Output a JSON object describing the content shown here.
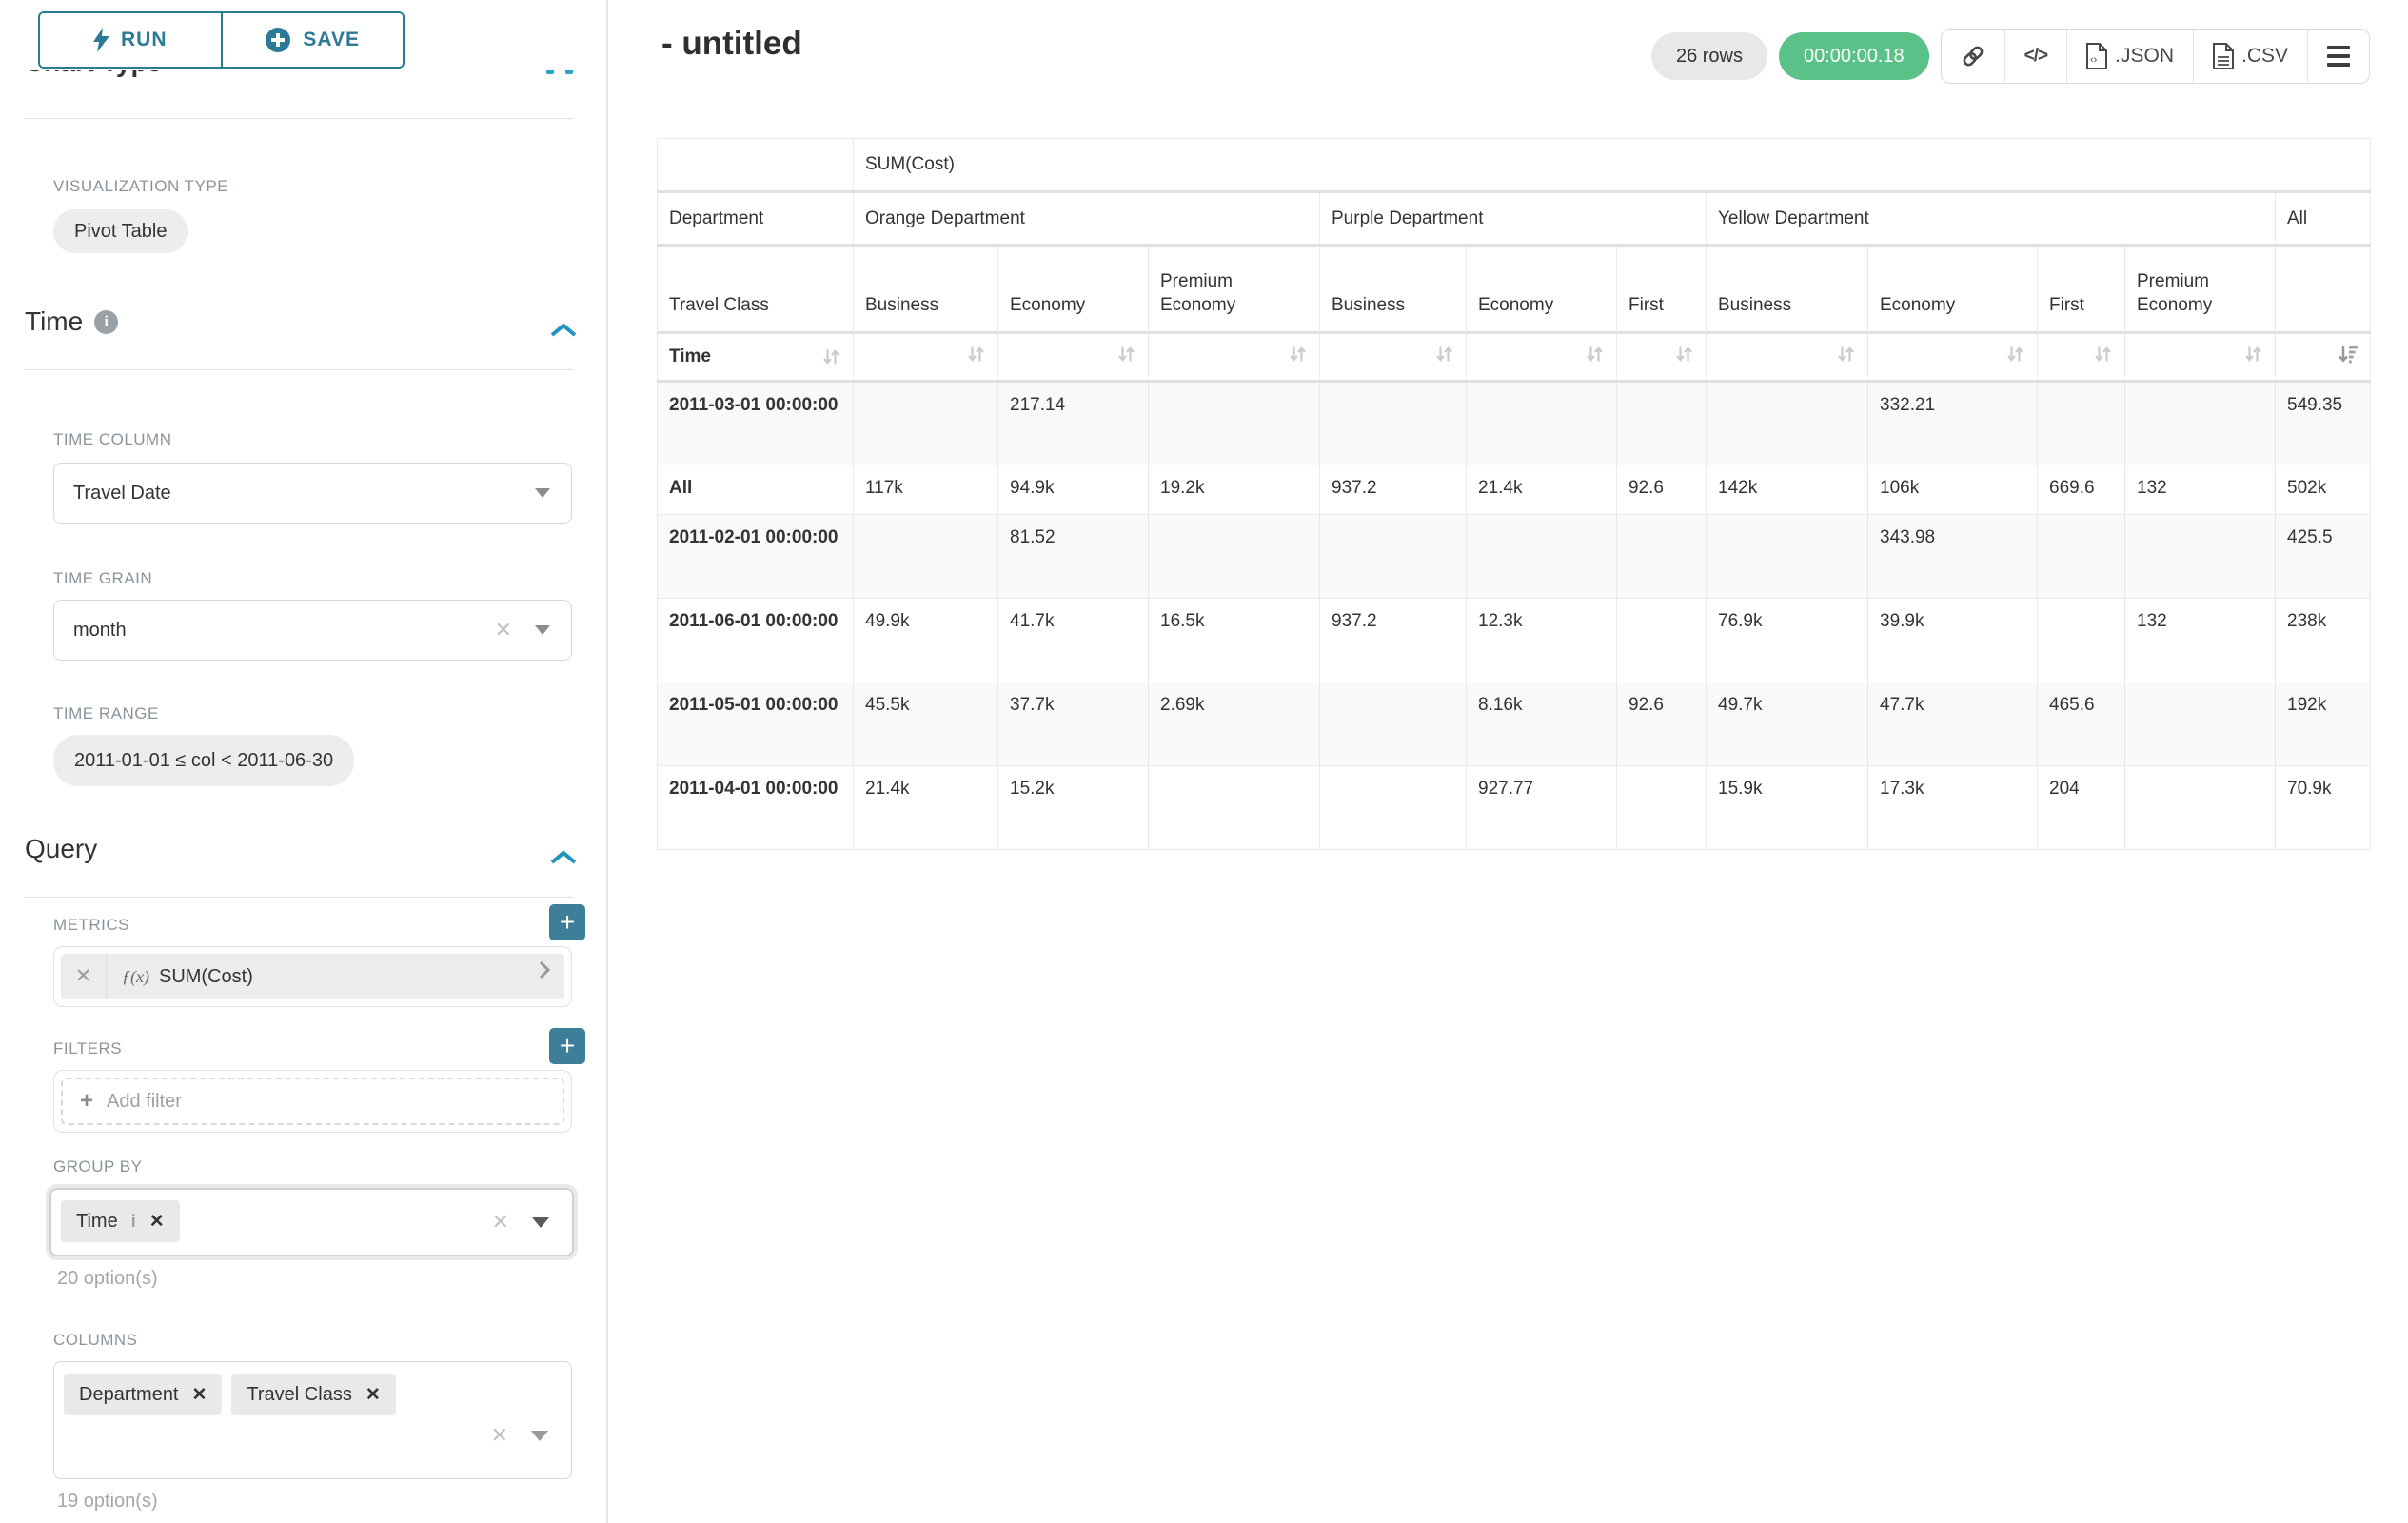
{
  "app": {
    "title": "- untitled"
  },
  "colors": {
    "teal": "#2b7a97",
    "teal_bright": "#2aa3c9",
    "plus_teal": "#3d7f99",
    "timer_green": "#5ac189",
    "label_gray": "#8a949b"
  },
  "left_panel": {
    "run_button": "RUN",
    "save_button": "SAVE",
    "chart_type_heading": "Chart Type",
    "visualization_type_label": "VISUALIZATION TYPE",
    "visualization_type_value": "Pivot Table",
    "time": {
      "heading": "Time",
      "time_column_label": "TIME COLUMN",
      "time_column_value": "Travel Date",
      "time_grain_label": "TIME GRAIN",
      "time_grain_value": "month",
      "time_range_label": "TIME RANGE",
      "time_range_value": "2011-01-01 ≤ col < 2011-06-30"
    },
    "query": {
      "heading": "Query",
      "metrics_label": "METRICS",
      "metric_fx": "ƒ(x)",
      "metric_value": "SUM(Cost)",
      "filters_label": "FILTERS",
      "add_filter_placeholder": "Add filter",
      "group_by_label": "GROUP BY",
      "group_by_tag": "Time",
      "group_by_options": "20 option(s)",
      "columns_label": "COLUMNS",
      "columns_tags": [
        "Department",
        "Travel Class"
      ],
      "columns_options": "19 option(s)"
    }
  },
  "results_header": {
    "rows_badge": "26 rows",
    "timer": "00:00:00.18",
    "code_glyph": "</>",
    "json_label": ".JSON",
    "csv_label": ".CSV"
  },
  "pivot_table": {
    "metric_header": "SUM(Cost)",
    "column_dimension_label": "Department",
    "sub_dimension_label": "Travel Class",
    "row_dimension_label": "Time",
    "col_groups": [
      {
        "label": "Orange Department",
        "children": [
          "Business",
          "Economy",
          "Premium Economy"
        ]
      },
      {
        "label": "Purple Department",
        "children": [
          "Business",
          "Economy",
          "First"
        ]
      },
      {
        "label": "Yellow Department",
        "children": [
          "Business",
          "Economy",
          "First",
          "Premium Economy"
        ]
      },
      {
        "label": "All",
        "children": [
          ""
        ]
      }
    ],
    "sorted_column_index": 10,
    "rows": [
      {
        "label": "2011-03-01 00:00:00",
        "values": [
          "",
          "217.14",
          "",
          "",
          "",
          "",
          "",
          "332.21",
          "",
          "",
          "549.35"
        ]
      },
      {
        "label": "All",
        "values": [
          "117k",
          "94.9k",
          "19.2k",
          "937.2",
          "21.4k",
          "92.6",
          "142k",
          "106k",
          "669.6",
          "132",
          "502k"
        ]
      },
      {
        "label": "2011-02-01 00:00:00",
        "values": [
          "",
          "81.52",
          "",
          "",
          "",
          "",
          "",
          "343.98",
          "",
          "",
          "425.5"
        ]
      },
      {
        "label": "2011-06-01 00:00:00",
        "values": [
          "49.9k",
          "41.7k",
          "16.5k",
          "937.2",
          "12.3k",
          "",
          "76.9k",
          "39.9k",
          "",
          "132",
          "238k"
        ]
      },
      {
        "label": "2011-05-01 00:00:00",
        "values": [
          "45.5k",
          "37.7k",
          "2.69k",
          "",
          "8.16k",
          "92.6",
          "49.7k",
          "47.7k",
          "465.6",
          "",
          "192k"
        ]
      },
      {
        "label": "2011-04-01 00:00:00",
        "values": [
          "21.4k",
          "15.2k",
          "",
          "",
          "927.77",
          "",
          "15.9k",
          "17.3k",
          "204",
          "",
          "70.9k"
        ]
      }
    ]
  }
}
